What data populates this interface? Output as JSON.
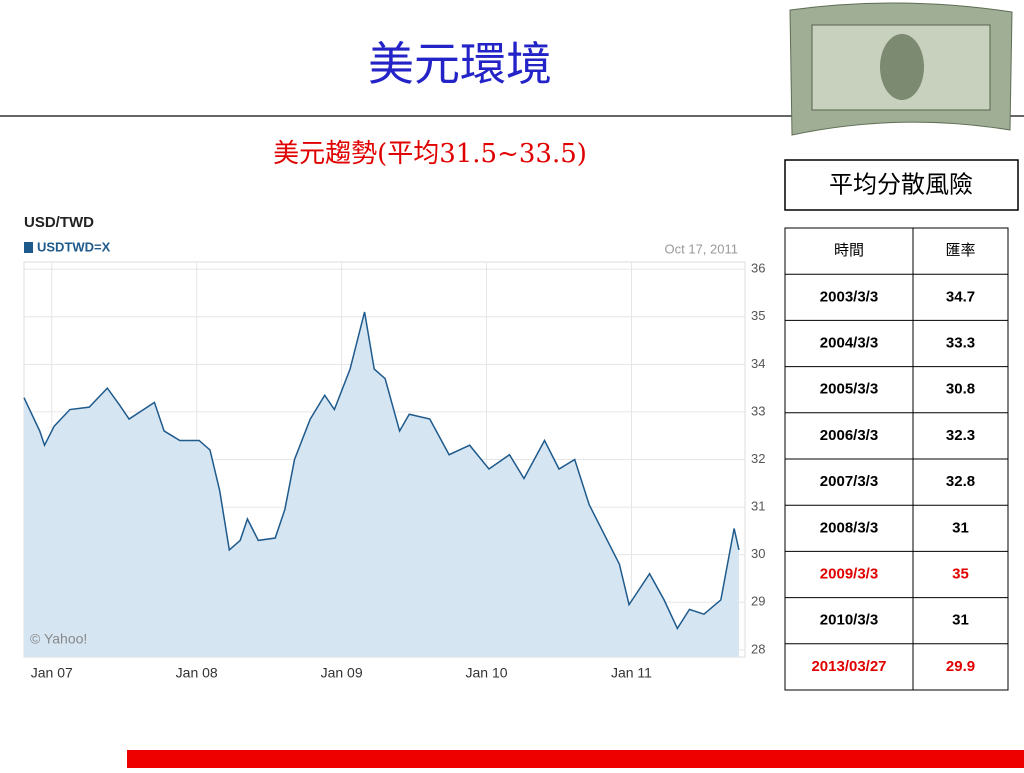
{
  "title": "美元環境",
  "subtitle": "美元趨勢(平均31.5~33.5)",
  "box_label": "平均分散風險",
  "chart_data": {
    "type": "area",
    "title": "USD/TWD",
    "legend": "USDTWD=X",
    "date": "Oct 17, 2011",
    "credit": "© Yahoo!",
    "color": "#1e5a8c",
    "fill": "#d6e5f2",
    "grid": true,
    "x": [
      -2.3,
      -1,
      -0.6,
      0.2,
      1.5,
      3.1,
      4.6,
      5.6,
      6.4,
      8.5,
      9.3,
      10.6,
      12.2,
      13.1,
      13.9,
      14.7,
      15.6,
      16.2,
      17.1,
      18.5,
      19.3,
      20.1,
      21.4,
      22.6,
      23.4,
      24.7,
      25.9,
      26.7,
      27.6,
      28.8,
      29.6,
      31.3,
      32.9,
      34.6,
      36.2,
      37.9,
      39.1,
      40.8,
      42.0,
      43.3,
      44.5,
      46.2,
      47.0,
      47.8,
      49.5,
      50.7,
      51.8,
      52.8,
      54.0,
      55.4,
      56.5,
      56.9
    ],
    "values": [
      33.3,
      32.6,
      32.3,
      32.7,
      33.05,
      33.1,
      33.5,
      33.15,
      32.85,
      33.2,
      32.6,
      32.4,
      32.4,
      32.2,
      31.35,
      30.1,
      30.3,
      30.75,
      30.3,
      30.35,
      30.95,
      32.0,
      32.85,
      33.35,
      33.05,
      33.9,
      35.1,
      33.9,
      33.7,
      32.6,
      32.95,
      32.85,
      32.1,
      32.3,
      31.8,
      32.1,
      31.6,
      32.4,
      31.8,
      32.0,
      31.05,
      30.2,
      29.8,
      28.95,
      29.6,
      29.05,
      28.45,
      28.85,
      28.75,
      29.05,
      30.55,
      30.1
    ],
    "xlim": [
      -2.3,
      57.4
    ],
    "xticks": [
      {
        "value": 0,
        "label": "Jan 07"
      },
      {
        "value": 12,
        "label": "Jan 08"
      },
      {
        "value": 24,
        "label": "Jan 09"
      },
      {
        "value": 36,
        "label": "Jan 10"
      },
      {
        "value": 48,
        "label": "Jan 11"
      }
    ],
    "ylim": [
      27.85,
      36.15
    ],
    "yticks": [
      28,
      29,
      30,
      31,
      32,
      33,
      34,
      35,
      36
    ]
  },
  "table": {
    "header": [
      "時間",
      "匯率"
    ],
    "rows": [
      [
        "2003/3/3",
        "34.7"
      ],
      [
        "2004/3/3",
        "33.3"
      ],
      [
        "2005/3/3",
        "30.8"
      ],
      [
        "2006/3/3",
        "32.3"
      ],
      [
        "2007/3/3",
        "32.8"
      ],
      [
        "2008/3/3",
        "31"
      ],
      [
        "2009/3/3",
        "35"
      ],
      [
        "2010/3/3",
        "31"
      ],
      [
        "2013/03/27",
        "29.9"
      ]
    ],
    "highlight_rows": [
      6,
      8
    ],
    "highlight_color": "#e00000"
  }
}
